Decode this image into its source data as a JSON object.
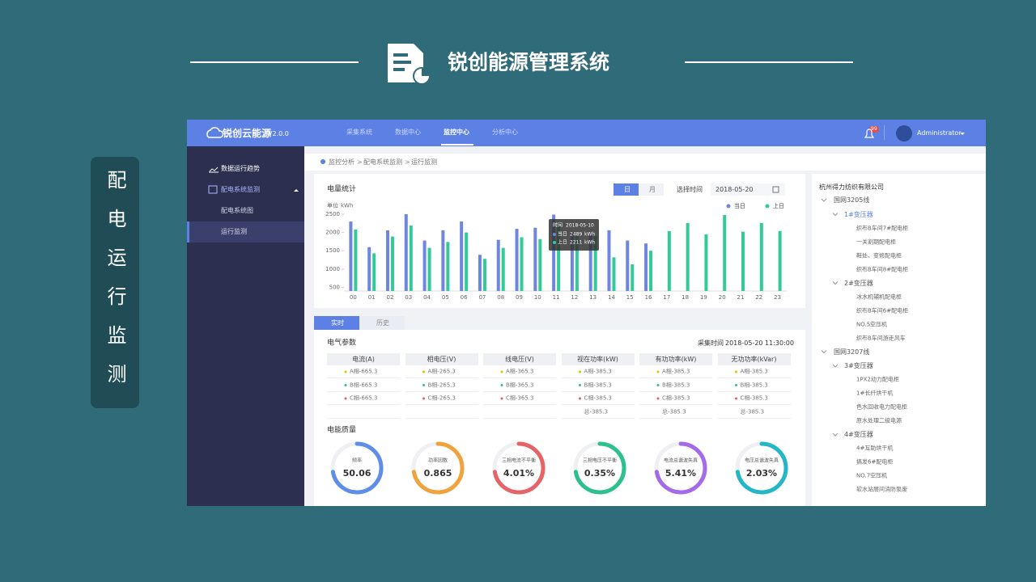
{
  "slide": {
    "title": "锐创能源管理系统",
    "side_label": "配电运行监测"
  },
  "app": {
    "logo": "锐创云能源",
    "version": "V2.0.0",
    "nav": [
      {
        "label": "采集系统"
      },
      {
        "label": "数据中心"
      },
      {
        "label": "监控中心",
        "active": true
      },
      {
        "label": "分析中心"
      }
    ],
    "notification_count": 99,
    "user": "Administrator"
  },
  "sidebar": {
    "items": [
      {
        "label": "数据运行趋势"
      },
      {
        "label": "配电系统监测",
        "children": [
          {
            "label": "配电系统图"
          },
          {
            "label": "运行监测",
            "active": true
          }
        ]
      }
    ]
  },
  "breadcrumb": [
    "监控分析",
    "配电系统监测",
    "运行监测"
  ],
  "breadcrumb_separator": ">",
  "chart_data": {
    "type": "bar",
    "title": "电量统计",
    "period_buttons": [
      "日",
      "月"
    ],
    "date_label": "选择时间",
    "date": "2018-05-20",
    "unit_label": "单位",
    "unit": "kWh",
    "categories": [
      "00",
      "01",
      "02",
      "03",
      "04",
      "05",
      "06",
      "07",
      "08",
      "09",
      "10",
      "11",
      "12",
      "13",
      "14",
      "15",
      "16",
      "17",
      "18",
      "19",
      "20",
      "21",
      "22",
      "23"
    ],
    "series": [
      {
        "name": "当日",
        "color": "#6f86de",
        "values": [
          2300,
          1600,
          2060,
          2500,
          1780,
          2060,
          2300,
          1390,
          1800,
          2100,
          2130,
          2489,
          2000,
          2000,
          2060,
          1780,
          1700,
          null,
          null,
          null,
          null,
          null,
          null,
          null
        ]
      },
      {
        "name": "上日",
        "color": "#33c998",
        "values": [
          2080,
          1430,
          1890,
          2190,
          1580,
          1740,
          2000,
          1280,
          1580,
          1870,
          1820,
          2211,
          1900,
          1900,
          1320,
          1130,
          1500,
          2040,
          2260,
          1950,
          2480,
          2020,
          2260,
          2040
        ]
      }
    ],
    "ylim": [
      400,
      2500
    ],
    "yticks": [
      500,
      1000,
      1500,
      2000,
      2500
    ],
    "tooltip": {
      "label": "时间",
      "date": "2018-05-10"
    }
  },
  "tabs": [
    {
      "label": "实时",
      "active": true
    },
    {
      "label": "历史"
    }
  ],
  "params": {
    "title": "电气参数",
    "time_label": "采集时间",
    "time": "2018-05-20 11:30:00",
    "headers": [
      "电流(A)",
      "相电压(V)",
      "线电压(V)",
      "视在功率(kW)",
      "有功功率(kW)",
      "无功功率(kVar)"
    ],
    "rows": [
      [
        "A相-665.3",
        "A相-265.3",
        "A相-365.3",
        "A相-385.3",
        "A相-385.3",
        "A相-385.3"
      ],
      [
        "B相-665.3",
        "B相-265.3",
        "B相-365.3",
        "B相-385.3",
        "B相-385.3",
        "B相-385.3"
      ],
      [
        "C相-665.3",
        "C相-265.3",
        "C相-365.3",
        "C相-385.3",
        "C相-385.3",
        "C相-385.3"
      ],
      [
        null,
        null,
        null,
        "总-385.3",
        "总-385.3",
        "总-385.3"
      ]
    ]
  },
  "quality": {
    "title": "电能质量",
    "gauges": [
      {
        "label": "频率",
        "value": "50.06",
        "color": "#5e8ee8"
      },
      {
        "label": "功率因数",
        "value": "0.865",
        "color": "#f0a33c"
      },
      {
        "label": "三相电流不平衡",
        "value": "4.01%",
        "color": "#e46468"
      },
      {
        "label": "三相电压不平衡",
        "value": "0.35%",
        "color": "#2cc08c"
      },
      {
        "label": "电流总谐波失真",
        "value": "5.41%",
        "color": "#a46ae8"
      },
      {
        "label": "电压总谐波失真",
        "value": "2.03%",
        "color": "#22b6c6"
      }
    ]
  },
  "tree": {
    "root": "杭州得力纺织有限公司",
    "lines": [
      {
        "name": "国网3205线",
        "transformers": [
          {
            "name": "1#变压器",
            "active": true,
            "items": [
              "织布B车间7#配电柜",
              "一关割期配电柜",
              "鞋处、变修配电柜",
              "织布B车间8#配电柜"
            ]
          },
          {
            "name": "2#变压器",
            "items": [
              "冰水机辅机配电柜",
              "织布B车间6#配电柜",
              "NO.5空压机",
              "织布B车间游走风车"
            ]
          }
        ]
      },
      {
        "name": "国网3207线",
        "transformers": [
          {
            "name": "3#变压器",
            "items": [
              "1PX2动力配电柜",
              "1#长纤烘干机",
              "色水回收电力配电柜",
              "原水处理二级电源"
            ]
          },
          {
            "name": "4#变压器",
            "items": [
              "4#互助烘干机",
              "搞发6#配电柜",
              "NO.7空压机",
              "软水站层间消防泵废"
            ]
          }
        ]
      }
    ]
  }
}
